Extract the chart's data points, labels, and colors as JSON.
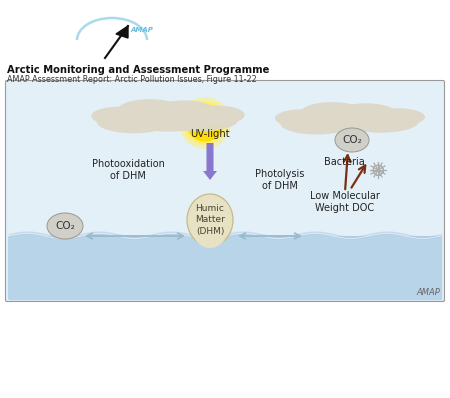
{
  "bg_color": "#ffffff",
  "sky_color": "#e4f0f8",
  "water_color": "#b8d4e8",
  "water_deep": "#a0c0dc",
  "title1": "Arctic Monitoring and Assessment Programme",
  "title2": "AMAP Assessment Report: Arctic Pollution Issues, Figure 11-22",
  "amap_logo_color": "#66bbdd",
  "uv_arrow_color": "#8877cc",
  "bio_arrow_color": "#7a3010",
  "label_uv": "UV-light",
  "label_humic": "Humic\nMatter\n(DHM)",
  "label_photo_ox": "Photooxidation\nof DHM",
  "label_photolysis": "Photolysis\nof DHM",
  "label_co2_left": "CO₂",
  "label_co2_right": "CO₂",
  "label_bacteria": "Bacteria",
  "label_lmw": "Low Molecular\nWeight DOC",
  "label_amap": "AMAP",
  "sun_color": "#ffdd00",
  "sun_glow": "#ffee66",
  "cloud_color": "#ddd8c8",
  "humic_color": "#e8e2c4",
  "humic_border": "#c8b888",
  "co2_bubble_color": "#d0cfc8",
  "co2_bubble_border": "#999990",
  "text_color": "#222222",
  "diagram_border": "#999999",
  "horiz_arrow_color": "#99bbcc"
}
